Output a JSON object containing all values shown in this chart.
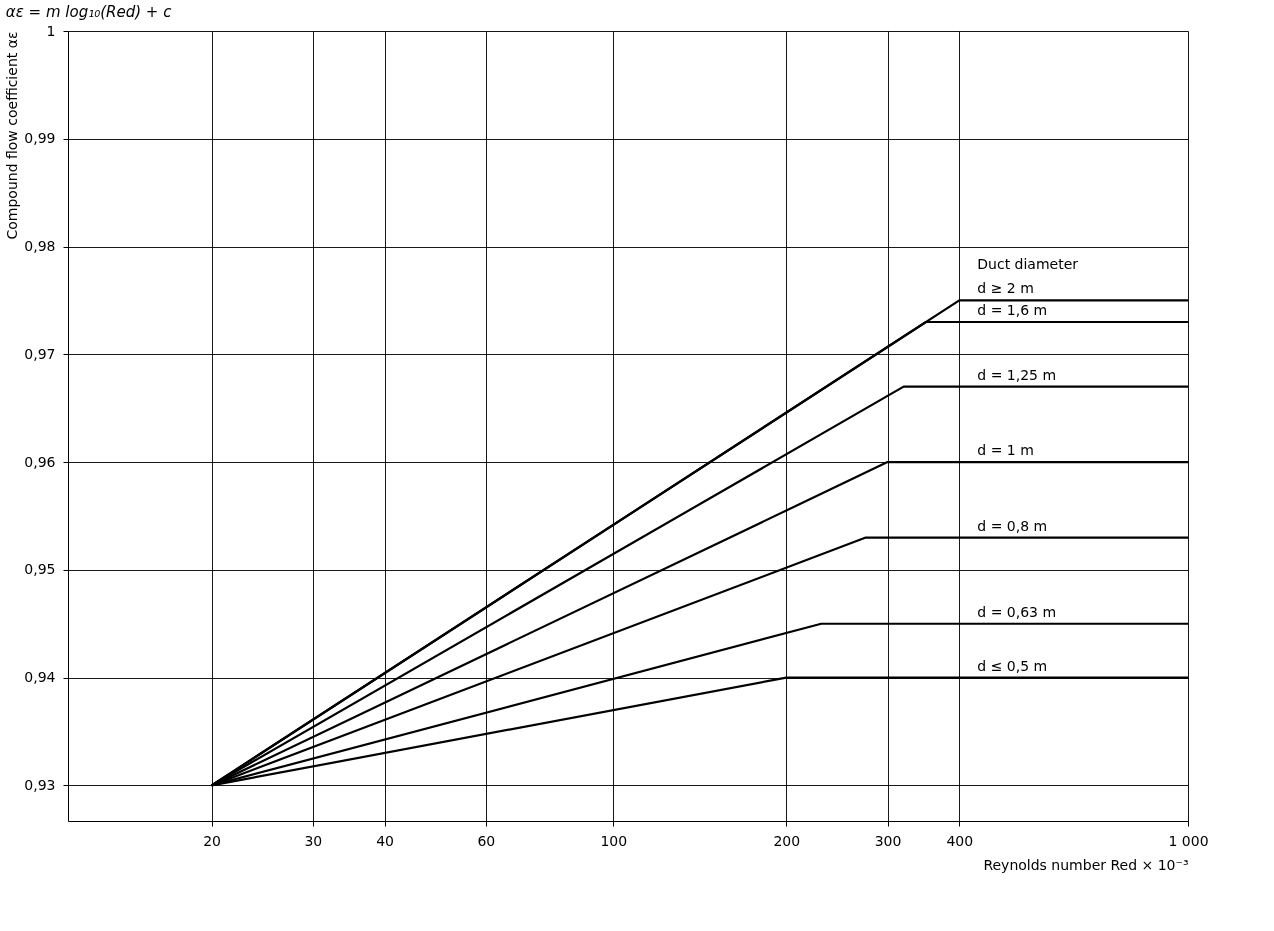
{
  "chart_data": {
    "type": "line",
    "title": "αε = m log₁₀(Red) + c",
    "xlabel": "Reynolds number Red × 10⁻³",
    "ylabel": "Compound flow coefficient αε",
    "legend_title": "Duct diameter",
    "log": "x",
    "xlim": [
      11.25,
      1000
    ],
    "ylim": [
      0.9267,
      1
    ],
    "xticks": [
      20,
      30,
      40,
      60,
      100,
      200,
      300,
      400,
      {
        "value": 1000,
        "label": "1 000"
      }
    ],
    "yticks": [
      {
        "value": 0.93,
        "label": "0,93"
      },
      {
        "value": 0.94,
        "label": "0,94"
      },
      {
        "value": 0.95,
        "label": "0,95"
      },
      {
        "value": 0.96,
        "label": "0,96"
      },
      {
        "value": 0.97,
        "label": "0,97"
      },
      {
        "value": 0.98,
        "label": "0,98"
      },
      {
        "value": 0.99,
        "label": "0,99"
      },
      1
    ],
    "grid": true,
    "legend": false,
    "marker": "none",
    "line_style": "solid",
    "series": [
      {
        "name": "d ≥ 2 m",
        "color": "#000000",
        "x": [
          20,
          400,
          1000
        ],
        "values": [
          0.93,
          0.975,
          0.975
        ]
      },
      {
        "name": "d = 1,6 m",
        "color": "#000000",
        "x": [
          20,
          350,
          1000
        ],
        "values": [
          0.93,
          0.973,
          0.973
        ]
      },
      {
        "name": "d = 1,25 m",
        "color": "#000000",
        "x": [
          20,
          320,
          1000
        ],
        "values": [
          0.93,
          0.967,
          0.967
        ]
      },
      {
        "name": "d = 1 m",
        "color": "#000000",
        "x": [
          20,
          300,
          1000
        ],
        "values": [
          0.93,
          0.96,
          0.96
        ]
      },
      {
        "name": "d = 0,8 m",
        "color": "#000000",
        "x": [
          20,
          275,
          1000
        ],
        "values": [
          0.93,
          0.953,
          0.953
        ]
      },
      {
        "name": "d = 0,63 m",
        "color": "#000000",
        "x": [
          20,
          230,
          1000
        ],
        "values": [
          0.93,
          0.945,
          0.945
        ]
      },
      {
        "name": "d ≤ 0,5 m",
        "color": "#000000",
        "x": [
          20,
          200,
          1000
        ],
        "values": [
          0.93,
          0.94,
          0.94
        ]
      }
    ]
  }
}
